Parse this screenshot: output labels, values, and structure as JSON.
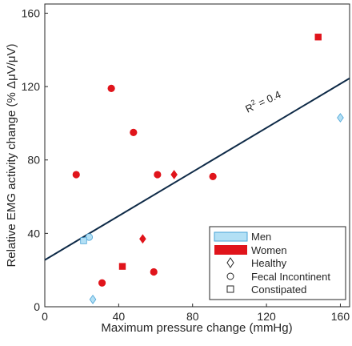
{
  "chart_data": {
    "type": "scatter",
    "xlabel": "Maximum pressure change (mmHg)",
    "ylabel": "Relative EMG activity change (% ΔμV/μV)",
    "xlim": [
      0,
      165
    ],
    "ylim": [
      0,
      165
    ],
    "x_ticks": [
      "0",
      "40",
      "80",
      "120",
      "160"
    ],
    "y_ticks": [
      "0",
      "40",
      "80",
      "120",
      "160"
    ],
    "grid": false,
    "legend_position": "bottom-right",
    "legend": {
      "men": "Men",
      "women": "Women",
      "healthy": "Healthy",
      "fecal": "Fecal Incontinent",
      "constipated": "Constipated"
    },
    "colors": {
      "men": "#b3e0f5",
      "men_stroke": "#4aa3d6",
      "women": "#e0141b",
      "line": "#0e2a47"
    },
    "annotation": {
      "text": "R² = 0.4",
      "base": "R",
      "exponent": "2",
      "rest": " = 0.4",
      "x": 119,
      "y": 110
    },
    "trendline": {
      "x": [
        0,
        165
      ],
      "y": [
        25.5,
        124.5
      ]
    },
    "series": [
      {
        "sex": "Women",
        "group": "Fecal Incontinent",
        "marker": "circle",
        "points": [
          [
            17,
            72
          ],
          [
            36,
            119
          ],
          [
            48,
            95
          ],
          [
            61,
            72
          ],
          [
            91,
            71
          ],
          [
            31,
            13
          ],
          [
            59,
            19
          ]
        ]
      },
      {
        "sex": "Women",
        "group": "Healthy",
        "marker": "diamond",
        "points": [
          [
            70,
            72
          ],
          [
            53,
            37
          ]
        ]
      },
      {
        "sex": "Women",
        "group": "Constipated",
        "marker": "square",
        "points": [
          [
            148,
            147
          ],
          [
            42,
            22
          ]
        ]
      },
      {
        "sex": "Men",
        "group": "Fecal Incontinent",
        "marker": "circle",
        "points": [
          [
            24,
            38
          ]
        ]
      },
      {
        "sex": "Men",
        "group": "Healthy",
        "marker": "diamond",
        "points": [
          [
            26,
            4
          ],
          [
            160,
            103
          ]
        ]
      },
      {
        "sex": "Men",
        "group": "Constipated",
        "marker": "square",
        "points": [
          [
            21,
            36
          ]
        ]
      }
    ]
  }
}
